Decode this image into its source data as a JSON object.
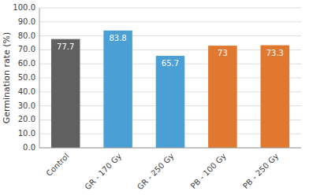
{
  "chart_data": {
    "type": "bar",
    "categories": [
      "Control",
      "GR - 170 Gy",
      "GR - 250 Gy",
      "PB - 100 Gy",
      "PB - 250 Gy"
    ],
    "values": [
      77.7,
      83.8,
      65.7,
      73.0,
      73.3
    ],
    "colors": [
      "#606060",
      "#4a9fd4",
      "#4a9fd4",
      "#e07830",
      "#e07830"
    ],
    "ylabel": "Germination rate (%)",
    "ylim": [
      0,
      100
    ],
    "yticks": [
      {
        "value": 0.0,
        "label": "0.0"
      },
      {
        "value": 10.0,
        "label": "10.0"
      },
      {
        "value": 20.0,
        "label": "20.0"
      },
      {
        "value": 30.0,
        "label": "30.0"
      },
      {
        "value": 40.0,
        "label": "40.0"
      },
      {
        "value": 50.0,
        "label": "50.0"
      },
      {
        "value": 60.0,
        "label": "60.0"
      },
      {
        "value": 70.0,
        "label": "70.0"
      },
      {
        "value": 80.0,
        "label": "80.0"
      },
      {
        "value": 90.0,
        "label": "90.0"
      },
      {
        "value": 100.0,
        "label": "100.0"
      }
    ],
    "grid": true,
    "data_labels": true
  }
}
